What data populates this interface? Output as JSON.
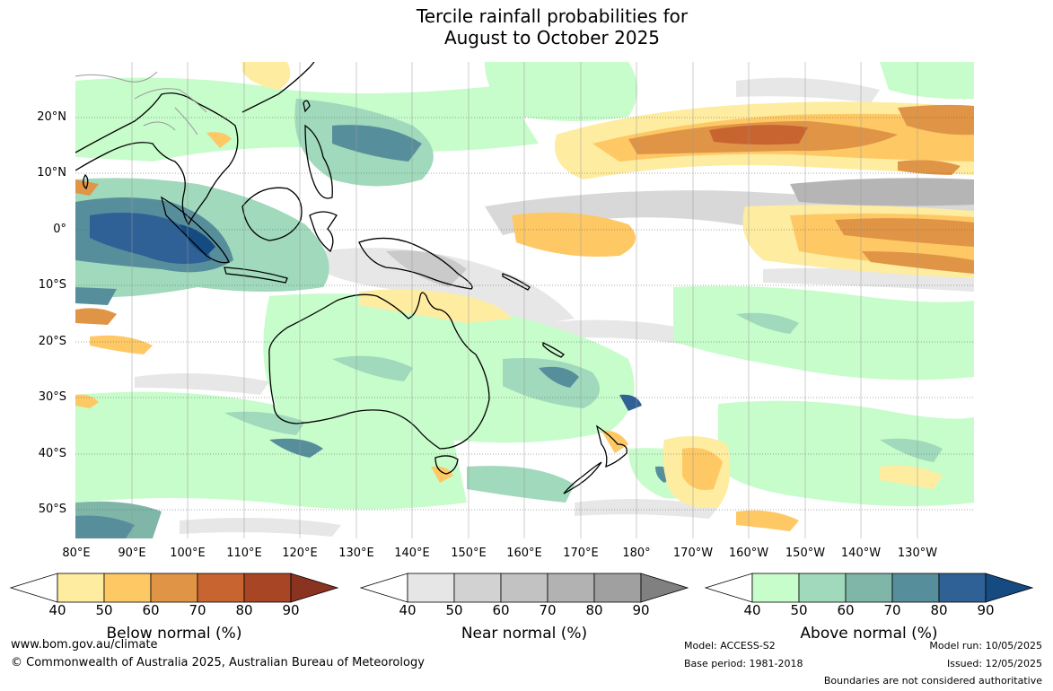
{
  "title": {
    "line1": "Tercile rainfall probabilities for",
    "line2": "August to October 2025"
  },
  "map": {
    "lat_labels": [
      "20°N",
      "10°N",
      "0°",
      "10°S",
      "20°S",
      "30°S",
      "40°S",
      "50°S"
    ],
    "lon_labels": [
      "80°E",
      "90°E",
      "100°E",
      "110°E",
      "120°E",
      "130°E",
      "140°E",
      "150°E",
      "160°E",
      "170°E",
      "180°",
      "170°W",
      "160°W",
      "150°W",
      "140°W",
      "130°W"
    ]
  },
  "colorbars": [
    {
      "title": "Below normal (%)",
      "ticks": [
        "40",
        "50",
        "60",
        "70",
        "80",
        "90"
      ],
      "colors": [
        "#ffffff",
        "#feeca0",
        "#fec865",
        "#e09546",
        "#c8642f",
        "#a84524",
        "#8a3320"
      ]
    },
    {
      "title": "Near normal (%)",
      "ticks": [
        "40",
        "50",
        "60",
        "70",
        "80",
        "90"
      ],
      "colors": [
        "#ffffff",
        "#e6e6e6",
        "#d2d2d2",
        "#c2c2c2",
        "#b2b2b2",
        "#a0a0a0",
        "#808080"
      ]
    },
    {
      "title": "Above normal (%)",
      "ticks": [
        "40",
        "50",
        "60",
        "70",
        "80",
        "90"
      ],
      "colors": [
        "#ffffff",
        "#c7fccb",
        "#a0d9bb",
        "#7fb6a8",
        "#578e9c",
        "#2f6196",
        "#154b80"
      ]
    }
  ],
  "footer": {
    "url": "www.bom.gov.au/climate",
    "copyright": "© Commonwealth of Australia 2025, Australian Bureau of Meteorology",
    "model": "Model: ACCESS-S2",
    "base_period": "Base period: 1981-2018",
    "model_run": "Model run: 10/05/2025",
    "issued": "Issued: 12/05/2025",
    "disclaimer": "Boundaries are not considered authoritative"
  }
}
